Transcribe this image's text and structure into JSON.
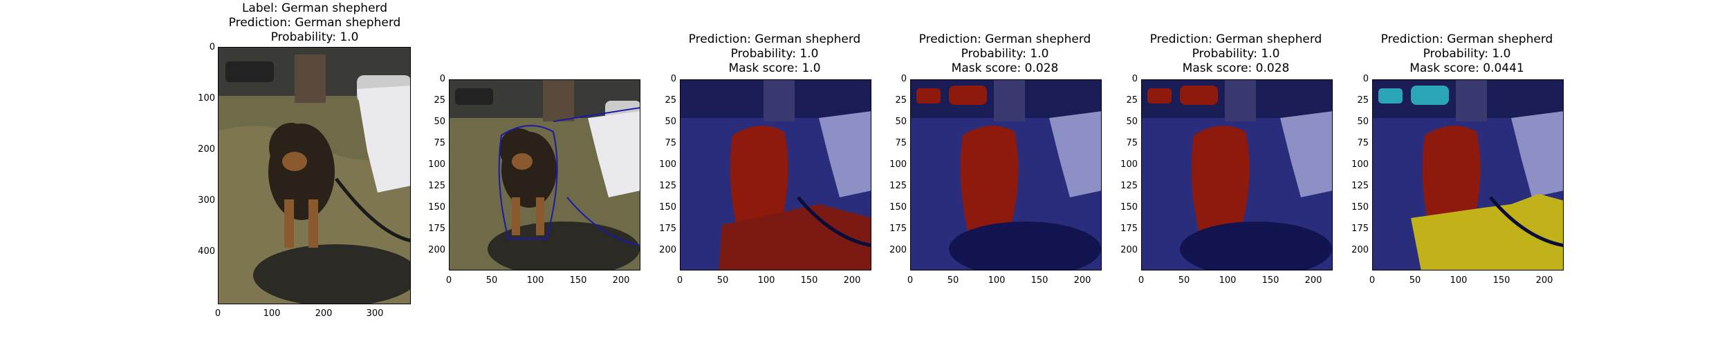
{
  "figure": {
    "panels": [
      {
        "title_lines": [
          "Label: German shepherd",
          "Prediction: German shepherd",
          "Probability: 1.0"
        ],
        "image": "original photo of a German shepherd dog on grass held on a leash",
        "x_ticks": [
          "0",
          "100",
          "200",
          "300"
        ],
        "y_ticks": [
          "0",
          "100",
          "200",
          "300",
          "400"
        ]
      },
      {
        "title_lines": [],
        "image": "resized photo with blue mask contour outline",
        "x_ticks": [
          "0",
          "50",
          "100",
          "150",
          "200"
        ],
        "y_ticks": [
          "0",
          "25",
          "50",
          "75",
          "100",
          "125",
          "150",
          "175",
          "200"
        ]
      },
      {
        "title_lines": [
          "Prediction: German shepherd",
          "Probability: 1.0",
          "Mask score: 1.0"
        ],
        "image": "photo with blue overlay, red mask on dog and shadow",
        "x_ticks": [
          "0",
          "50",
          "100",
          "150",
          "200"
        ],
        "y_ticks": [
          "0",
          "25",
          "50",
          "75",
          "100",
          "125",
          "150",
          "175",
          "200"
        ]
      },
      {
        "title_lines": [
          "Prediction: German shepherd",
          "Probability: 1.0",
          "Mask score: 0.028"
        ],
        "image": "photo with blue overlay, red mask on dog and cars",
        "x_ticks": [
          "0",
          "50",
          "100",
          "150",
          "200"
        ],
        "y_ticks": [
          "0",
          "25",
          "50",
          "75",
          "100",
          "125",
          "150",
          "175",
          "200"
        ]
      },
      {
        "title_lines": [
          "Prediction: German shepherd",
          "Probability: 1.0",
          "Mask score: 0.028"
        ],
        "image": "photo with blue overlay, red mask on dog and cars",
        "x_ticks": [
          "0",
          "50",
          "100",
          "150",
          "200"
        ],
        "y_ticks": [
          "0",
          "25",
          "50",
          "75",
          "100",
          "125",
          "150",
          "175",
          "200"
        ]
      },
      {
        "title_lines": [
          "Prediction: German shepherd",
          "Probability: 1.0",
          "Mask score: 0.0441"
        ],
        "image": "photo with blue overlay, red dog, cyan cars, yellow shadow",
        "x_ticks": [
          "0",
          "50",
          "100",
          "150",
          "200"
        ],
        "y_ticks": [
          "0",
          "25",
          "50",
          "75",
          "100",
          "125",
          "150",
          "175",
          "200"
        ]
      }
    ]
  },
  "chart_data": [
    {
      "type": "image",
      "title": "Label: German shepherd\nPrediction: German shepherd\nProbability: 1.0",
      "xlim": [
        0,
        375
      ],
      "ylim": [
        500,
        0
      ]
    },
    {
      "type": "image",
      "title": "",
      "xlim": [
        0,
        224
      ],
      "ylim": [
        224,
        0
      ]
    },
    {
      "type": "image",
      "title": "Prediction: German shepherd\nProbability: 1.0\nMask score: 1.0",
      "xlim": [
        0,
        224
      ],
      "ylim": [
        224,
        0
      ]
    },
    {
      "type": "image",
      "title": "Prediction: German shepherd\nProbability: 1.0\nMask score: 0.028",
      "xlim": [
        0,
        224
      ],
      "ylim": [
        224,
        0
      ]
    },
    {
      "type": "image",
      "title": "Prediction: German shepherd\nProbability: 1.0\nMask score: 0.028",
      "xlim": [
        0,
        224
      ],
      "ylim": [
        224,
        0
      ]
    },
    {
      "type": "image",
      "title": "Prediction: German shepherd\nProbability: 1.0\nMask score: 0.0441",
      "xlim": [
        0,
        224
      ],
      "ylim": [
        224,
        0
      ]
    }
  ],
  "colors": {
    "grass": "#6f6a48",
    "dog_body": "#2a2118",
    "dog_tan": "#8a5a2e",
    "jacket": "#e9e9ee",
    "blue_overlay": "#1c1f7a",
    "red_mask": "#8e1a0e",
    "cyan_mask": "#2aa6b8",
    "yellow_mask": "#c2b21a",
    "contour": "#1a1aa8"
  }
}
